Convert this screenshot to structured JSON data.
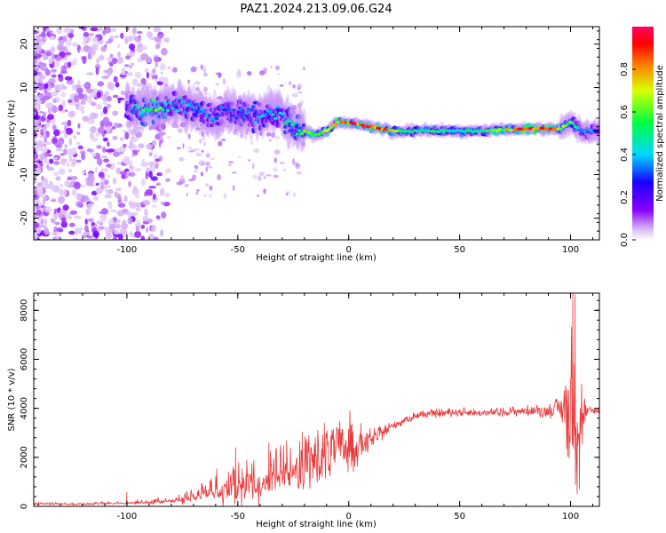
{
  "title": "PAZ1.2024.213.09.06.G24",
  "chart_data": [
    {
      "type": "heatmap",
      "xlabel": "Height of straight line (km)",
      "ylabel": "Frequency (Hz)",
      "xlim": [
        -142,
        113
      ],
      "ylim": [
        -25,
        24
      ],
      "xticks": [
        -100,
        -50,
        0,
        50,
        100
      ],
      "yticks": [
        -20,
        -10,
        0,
        10,
        20
      ],
      "colorbar": {
        "label": "Normalized spectral amplitude",
        "range": [
          0,
          1
        ],
        "ticks": [
          "0.0",
          "0.2",
          "0.4",
          "0.6",
          "0.8"
        ],
        "colormap": "gist_rainbow_r (white at 0, violet → blue → cyan → green → yellow → red → pink at 1)"
      },
      "ridge": {
        "description": "Dominant frequency ridge of the spectrogram",
        "x": [
          -100,
          -95,
          -90,
          -85,
          -80,
          -75,
          -70,
          -65,
          -60,
          -55,
          -50,
          -45,
          -40,
          -35,
          -30,
          -25,
          -20,
          -15,
          -10,
          -5,
          0,
          5,
          10,
          15,
          20,
          25,
          30,
          40,
          50,
          60,
          70,
          80,
          90,
          95,
          100,
          105,
          110
        ],
        "y": [
          6,
          5,
          5,
          5,
          6,
          6,
          5,
          4,
          3,
          5,
          4,
          4,
          3,
          4,
          4,
          1,
          0,
          -1,
          0,
          2,
          2,
          1.5,
          1,
          0.5,
          0,
          0,
          0,
          0,
          0,
          0,
          0.3,
          0.5,
          0.5,
          0.5,
          2,
          0,
          0
        ],
        "peak_amplitude": [
          0.3,
          0.5,
          0.6,
          0.6,
          0.4,
          0.45,
          0.4,
          0.4,
          0.35,
          0.35,
          0.35,
          0.4,
          0.4,
          0.4,
          0.45,
          0.5,
          0.6,
          0.65,
          0.7,
          0.8,
          0.9,
          0.9,
          0.95,
          0.85,
          0.75,
          0.5,
          0.5,
          0.55,
          0.5,
          0.55,
          0.7,
          0.95,
          0.9,
          0.7,
          0.6,
          0.4,
          0.35
        ]
      }
    },
    {
      "type": "line",
      "xlabel": "Height of straight line (km)",
      "ylabel": "SNR (10 * v/v)",
      "xlim": [
        -142,
        113
      ],
      "ylim": [
        0,
        8700
      ],
      "xticks": [
        -100,
        -50,
        0,
        50,
        100
      ],
      "yticks": [
        0,
        2000,
        4000,
        6000,
        8000
      ],
      "color": "#e8393a",
      "series": [
        {
          "x": [
            -142,
            -120,
            -100,
            -90,
            -80,
            -75,
            -70,
            -60,
            -55,
            -50,
            -45,
            -40,
            -35,
            -30,
            -25,
            -20,
            -15,
            -10,
            -5,
            0,
            5,
            10,
            15,
            20,
            25,
            30,
            35,
            40,
            50,
            60,
            70,
            80,
            90,
            95,
            98,
            100,
            102,
            104,
            106,
            108,
            110,
            113
          ],
          "y": [
            120,
            100,
            160,
            190,
            260,
            360,
            500,
            800,
            950,
            1000,
            1100,
            1200,
            1400,
            1600,
            1800,
            1700,
            1900,
            2200,
            2400,
            2500,
            2500,
            2700,
            3000,
            3300,
            3500,
            3700,
            3750,
            3800,
            3850,
            3800,
            3850,
            3900,
            3900,
            4000,
            4000,
            4000,
            4000,
            3500,
            3800,
            3850,
            3900,
            3900
          ],
          "variability": [
            40,
            40,
            60,
            80,
            120,
            200,
            300,
            500,
            700,
            800,
            900,
            800,
            900,
            1000,
            1100,
            1200,
            1000,
            900,
            800,
            900,
            500,
            300,
            200,
            150,
            120,
            120,
            120,
            120,
            120,
            120,
            130,
            150,
            200,
            300,
            1200,
            2500,
            2000,
            1800,
            600,
            150,
            120,
            120
          ],
          "spikes": [
            {
              "x": -100,
              "y": 580
            },
            {
              "x": -51,
              "y": 2400
            },
            {
              "x": -46,
              "y": 1900
            },
            {
              "x": -36,
              "y": 2600
            },
            {
              "x": -28,
              "y": 2700
            },
            {
              "x": -21,
              "y": 3050
            },
            {
              "x": -18,
              "y": 2900
            },
            {
              "x": -11,
              "y": 3400
            },
            {
              "x": 0.5,
              "y": 3900
            },
            {
              "x": 5.5,
              "y": 3400
            },
            {
              "x": 101,
              "y": 8700
            },
            {
              "x": 102,
              "y": 8650
            },
            {
              "x": 103,
              "y": 500
            },
            {
              "x": 104,
              "y": 700
            },
            {
              "x": 105,
              "y": 5000
            }
          ]
        }
      ]
    }
  ]
}
